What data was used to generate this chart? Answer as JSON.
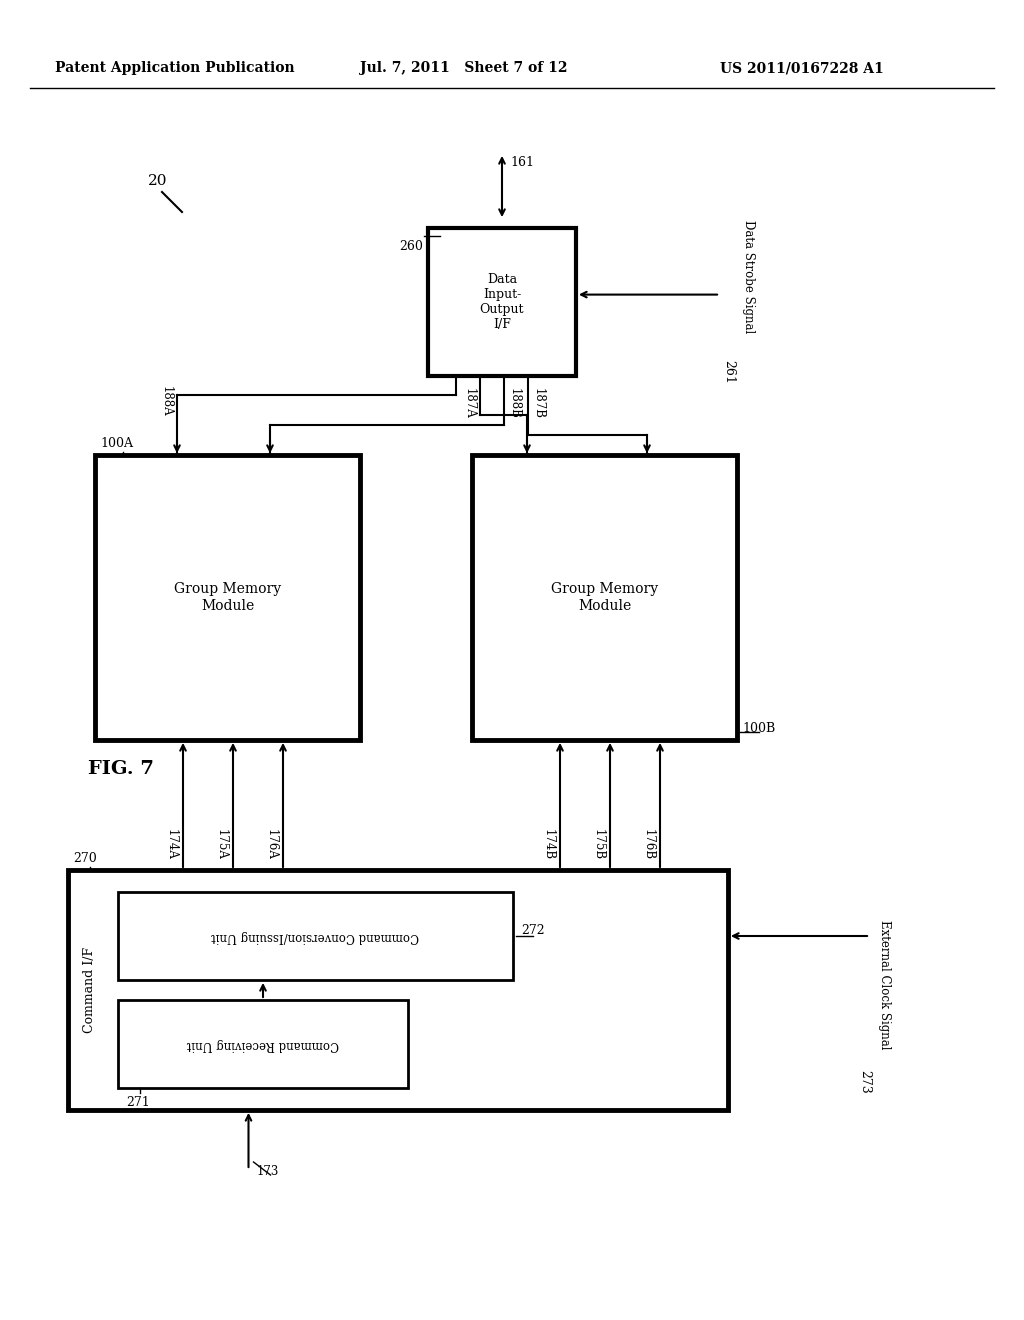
{
  "bg_color": "#ffffff",
  "header_left": "Patent Application Publication",
  "header_mid": "Jul. 7, 2011   Sheet 7 of 12",
  "header_right": "US 2011/0167228 A1",
  "fig_label": "FIG. 7"
}
